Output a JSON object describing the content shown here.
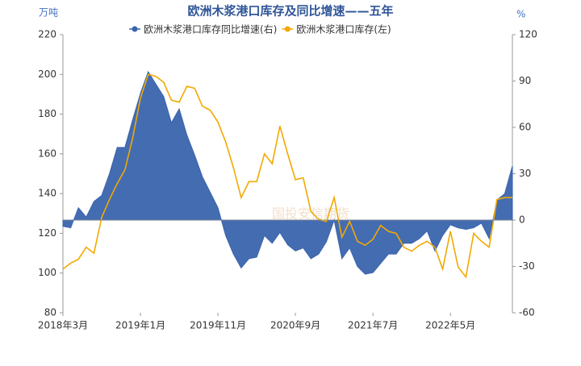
{
  "chart_data": {
    "type": "combo",
    "title": "欧洲木浆港口库存及同比增速——五年",
    "y_label": "万吨",
    "y2_label": "%",
    "watermark": "国投安信期货",
    "categories": [
      "2018年3月",
      null,
      null,
      null,
      null,
      null,
      null,
      null,
      null,
      null,
      "2019年1月",
      null,
      null,
      null,
      null,
      null,
      null,
      null,
      null,
      null,
      "2019年11月",
      null,
      null,
      null,
      null,
      null,
      null,
      null,
      null,
      null,
      "2020年9月",
      null,
      null,
      null,
      null,
      null,
      null,
      null,
      null,
      null,
      "2021年7月",
      null,
      null,
      null,
      null,
      null,
      null,
      null,
      null,
      null,
      "2022年5月",
      null,
      null,
      null,
      null,
      null,
      null,
      null,
      null
    ],
    "series": [
      {
        "name": "欧洲木浆港口库存同比增速(右)",
        "color": "#3a64ad",
        "type": "area",
        "axis": "y2",
        "values": [
          -4,
          -5,
          8,
          2,
          12,
          16,
          30,
          47,
          47,
          65,
          82,
          96,
          88,
          80,
          63,
          72,
          55,
          42,
          28,
          18,
          8,
          -10,
          -22,
          -31,
          -25,
          -24,
          -10,
          -15,
          -8,
          -16,
          -20,
          -18,
          -25,
          -22,
          -14,
          0,
          -25,
          -18,
          -30,
          -35,
          -34,
          -28,
          -22,
          -22,
          -15,
          -15,
          -12,
          -7,
          -20,
          -10,
          -3,
          -5,
          -6,
          -5,
          -2,
          -12,
          13,
          17,
          35
        ]
      },
      {
        "name": "欧洲木浆港口库存(左)",
        "color": "#f2a900",
        "type": "line",
        "axis": "y",
        "values": [
          102,
          105,
          107,
          113,
          110,
          128,
          137,
          145,
          152,
          168,
          188,
          200,
          199,
          196,
          187,
          186,
          194,
          193,
          184,
          182,
          176,
          166,
          153,
          138,
          146,
          146,
          160,
          155,
          174,
          160,
          147,
          148,
          131,
          127,
          126,
          138,
          118,
          126,
          116,
          114,
          117,
          124,
          121,
          120,
          113,
          111,
          114,
          116,
          113,
          102,
          121,
          103,
          98,
          120,
          116,
          113,
          137,
          138,
          138
        ]
      }
    ],
    "ylim": [
      80,
      220
    ],
    "yticks": [
      80,
      100,
      120,
      140,
      160,
      180,
      200,
      220
    ],
    "y2lim": [
      -60,
      120
    ],
    "y2ticks": [
      -60,
      -30,
      0,
      30,
      60,
      90,
      120
    ],
    "legend": "top"
  }
}
